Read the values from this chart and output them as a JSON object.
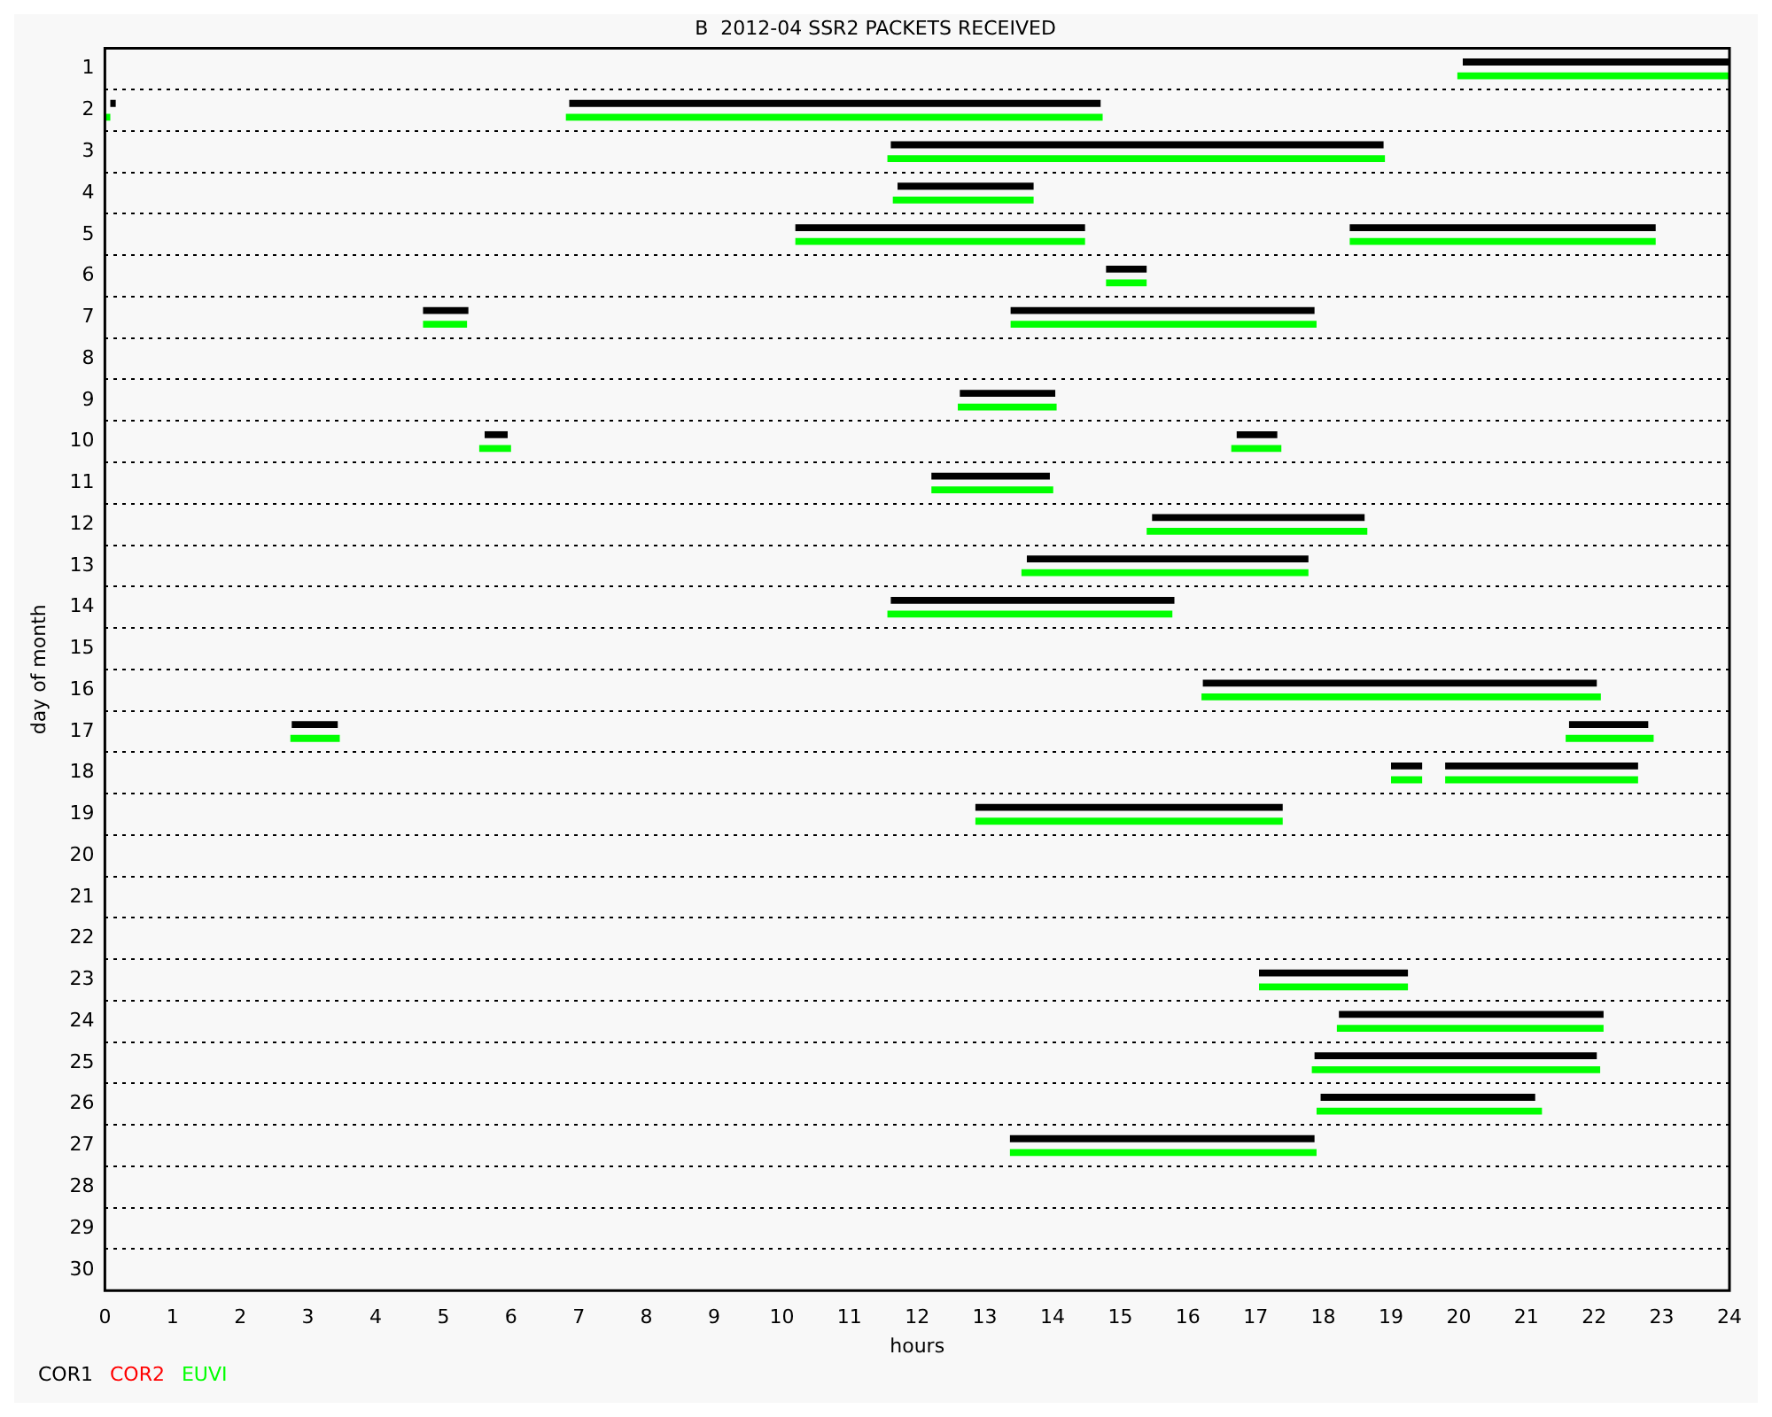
{
  "chart_data": {
    "type": "bar",
    "orientation": "horizontal",
    "title": "B  2012-04 SSR2 PACKETS RECEIVED",
    "xlabel": "hours",
    "ylabel": "day of month",
    "categories": [
      "1",
      "2",
      "3",
      "4",
      "5",
      "6",
      "7",
      "8",
      "9",
      "10",
      "11",
      "12",
      "13",
      "14",
      "15",
      "16",
      "17",
      "18",
      "19",
      "20",
      "21",
      "22",
      "23",
      "24",
      "25",
      "26",
      "27",
      "28",
      "29",
      "30"
    ],
    "xlim": [
      0,
      24
    ],
    "xticks": [
      0,
      1,
      2,
      3,
      4,
      5,
      6,
      7,
      8,
      9,
      10,
      11,
      12,
      13,
      14,
      15,
      16,
      17,
      18,
      19,
      20,
      21,
      22,
      23,
      24
    ],
    "grid": "y",
    "legend": "bottom",
    "series": [
      {
        "name": "COR1",
        "color": "#000000",
        "base": [
          20.06,
          6.86,
          11.61,
          11.71,
          10.2,
          14.79,
          4.7,
          null,
          12.63,
          5.61,
          12.21,
          15.47,
          13.62,
          11.61,
          null,
          16.22,
          2.76,
          19.0,
          12.86,
          null,
          null,
          null,
          17.05,
          18.23,
          17.87,
          17.96,
          13.37,
          null,
          null,
          null
        ],
        "values": [
          3.94,
          7.85,
          7.28,
          2.01,
          4.28,
          0.6,
          0.67,
          null,
          1.41,
          0.34,
          1.75,
          3.14,
          4.16,
          4.19,
          null,
          5.82,
          0.68,
          0.46,
          4.54,
          null,
          null,
          null,
          2.2,
          3.91,
          4.17,
          3.17,
          4.5,
          null,
          null,
          null
        ]
      },
      {
        "color": "#000000",
        "base": [
          null,
          0.08,
          null,
          null,
          18.39,
          null,
          13.38,
          null,
          null,
          16.72,
          null,
          null,
          null,
          null,
          null,
          null,
          21.63,
          19.8,
          null,
          null,
          null,
          null,
          null,
          null,
          null,
          null,
          null,
          null,
          null,
          null
        ],
        "values": [
          null,
          0.08,
          null,
          null,
          4.52,
          null,
          4.49,
          null,
          null,
          0.6,
          null,
          null,
          null,
          null,
          null,
          null,
          1.17,
          2.85,
          null,
          null,
          null,
          null,
          null,
          null,
          null,
          null,
          null,
          null,
          null,
          null
        ]
      },
      {
        "name": "COR2",
        "color": "#ff0000",
        "values": [
          null,
          null,
          null,
          null,
          null,
          null,
          null,
          null,
          null,
          null,
          null,
          null,
          null,
          null,
          null,
          null,
          null,
          null,
          null,
          null,
          null,
          null,
          null,
          null,
          null,
          null,
          null,
          null,
          null,
          null
        ]
      },
      {
        "name": "EUVI",
        "color": "#00ff00",
        "base": [
          19.98,
          6.81,
          11.56,
          11.64,
          10.2,
          14.79,
          4.7,
          null,
          12.6,
          5.53,
          12.21,
          15.39,
          13.54,
          11.56,
          null,
          16.2,
          2.74,
          19.0,
          12.86,
          null,
          null,
          null,
          17.05,
          18.2,
          17.83,
          17.9,
          13.37,
          null,
          null,
          null
        ],
        "values": [
          4.02,
          7.93,
          7.35,
          2.08,
          4.28,
          0.6,
          0.65,
          null,
          1.46,
          0.47,
          1.8,
          3.26,
          4.24,
          4.21,
          null,
          5.9,
          0.73,
          0.46,
          4.54,
          null,
          null,
          null,
          2.2,
          3.94,
          4.26,
          3.33,
          4.53,
          null,
          null,
          null
        ]
      },
      {
        "color": "#00ff00",
        "base": [
          null,
          0,
          null,
          null,
          18.39,
          null,
          13.38,
          null,
          null,
          16.64,
          null,
          null,
          null,
          null,
          null,
          null,
          21.58,
          19.8,
          null,
          null,
          null,
          null,
          null,
          null,
          null,
          null,
          null,
          null,
          null,
          null
        ],
        "values": [
          null,
          0.08,
          null,
          null,
          4.52,
          null,
          4.52,
          null,
          null,
          0.74,
          null,
          null,
          null,
          null,
          null,
          null,
          1.3,
          2.85,
          null,
          null,
          null,
          null,
          null,
          null,
          null,
          null,
          null,
          null,
          null,
          null
        ]
      }
    ]
  }
}
